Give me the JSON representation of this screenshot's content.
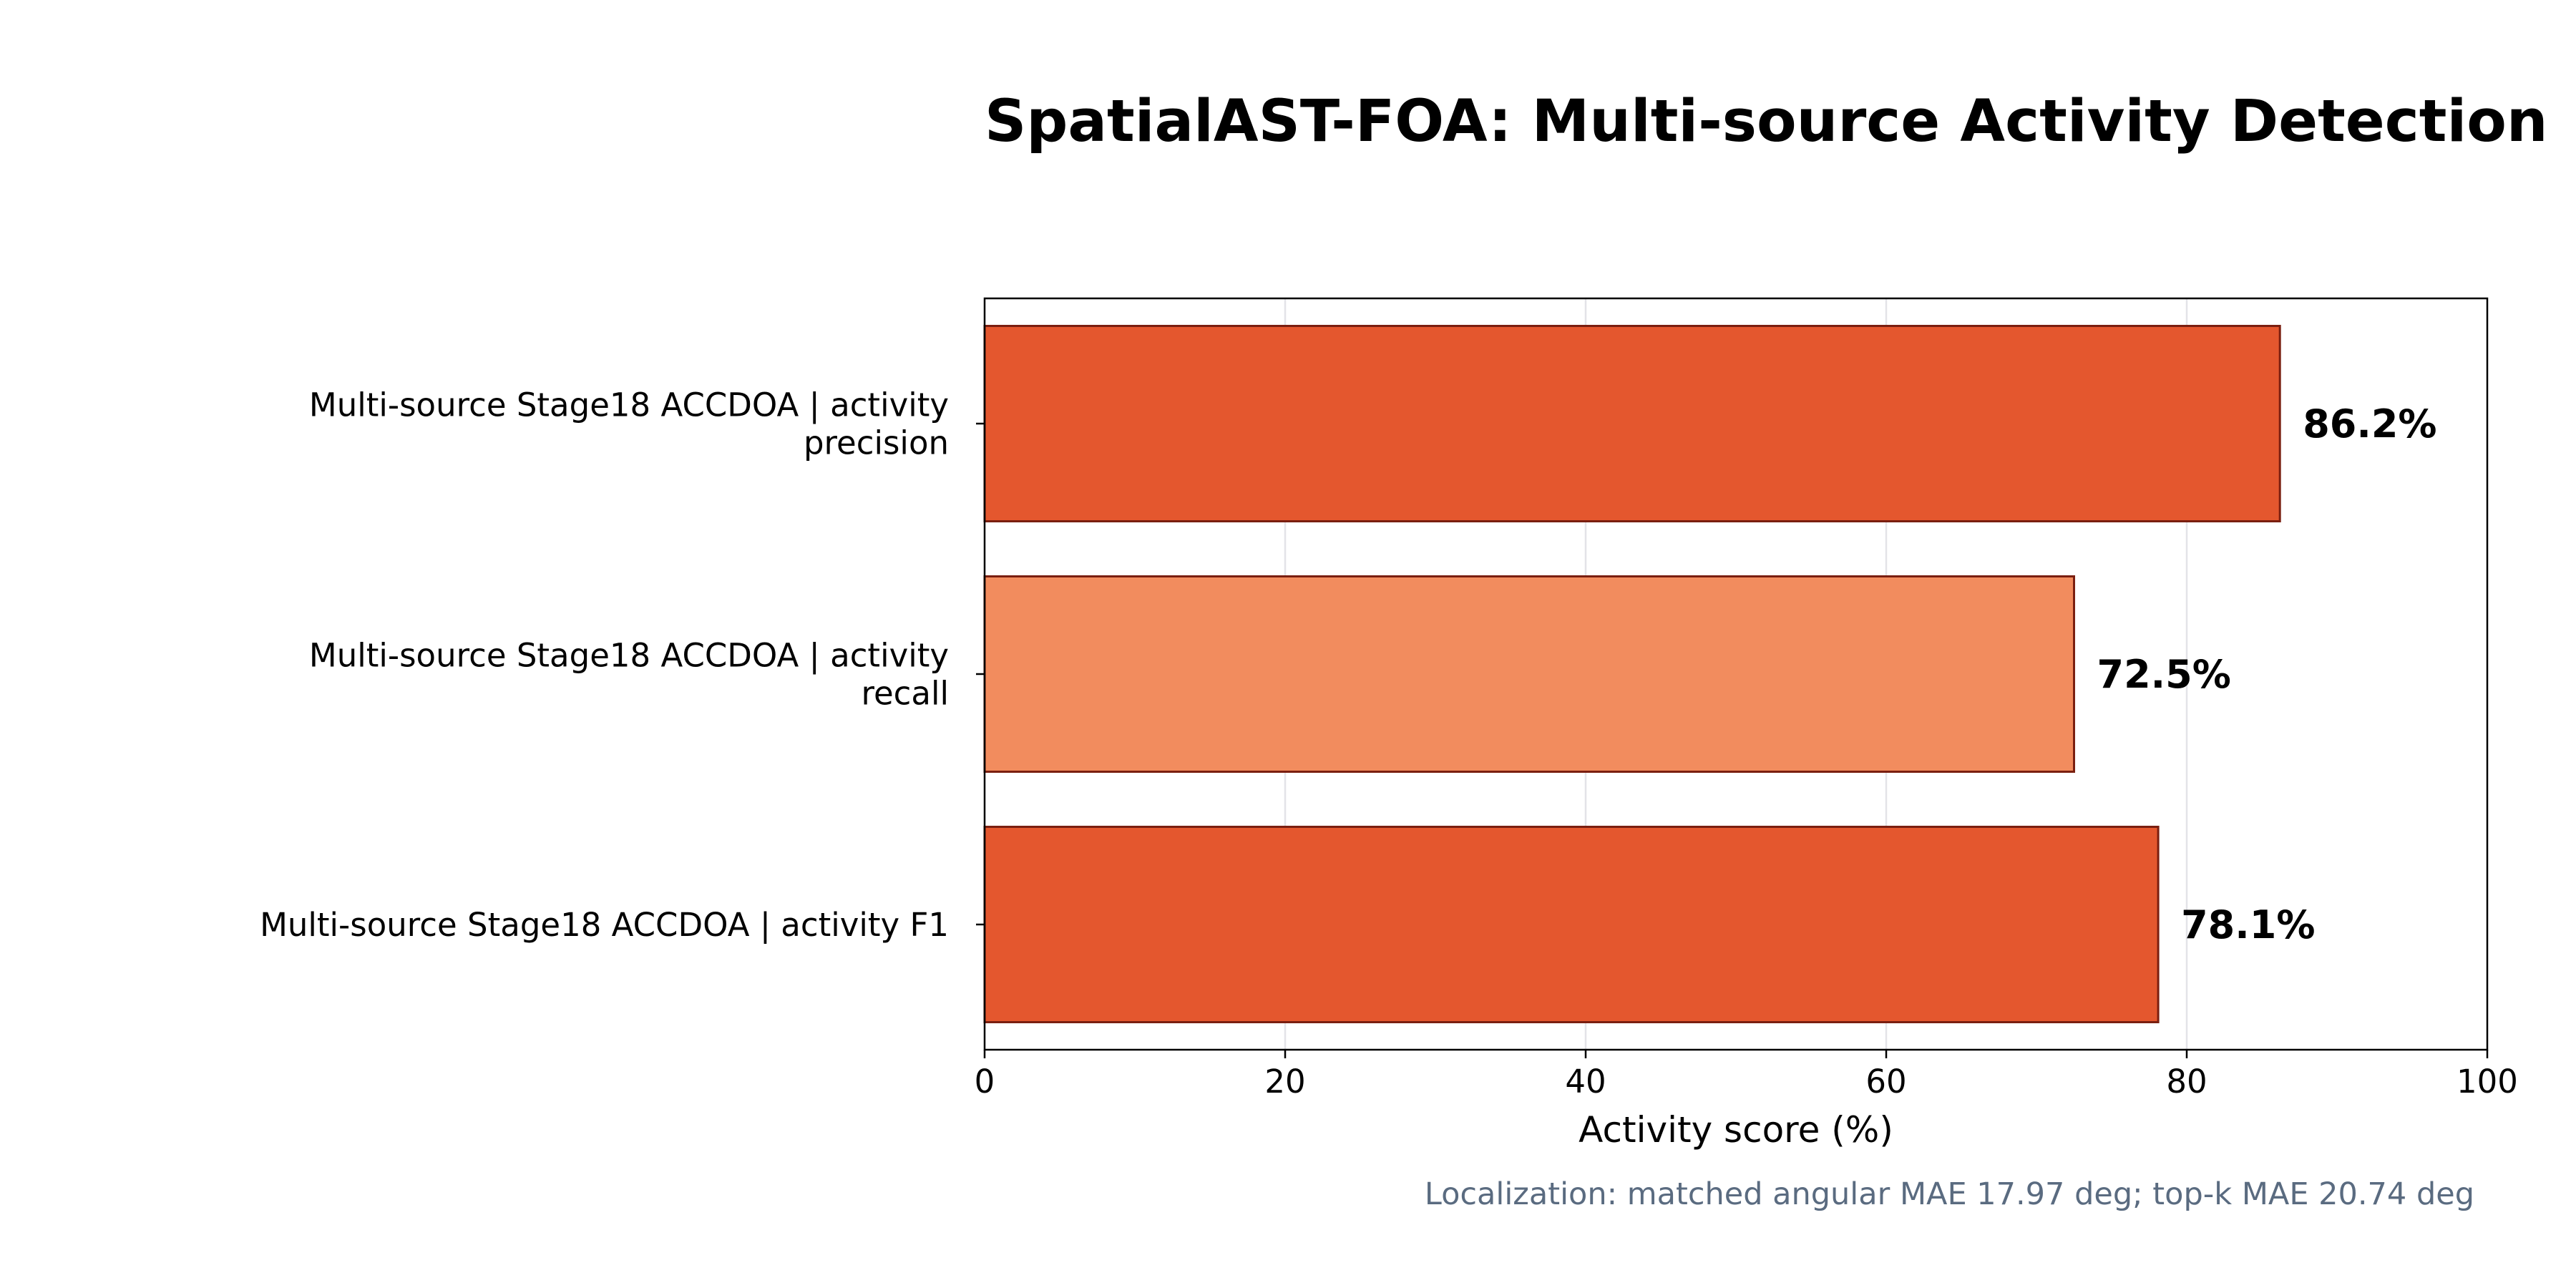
{
  "chart_data": {
    "type": "bar",
    "orientation": "horizontal",
    "title": "SpatialAST-FOA: Multi-source Activity Detection",
    "xlabel": "Activity score (%)",
    "ylabel": "",
    "xlim": [
      0,
      100
    ],
    "xticks": [
      "0",
      "20",
      "40",
      "60",
      "80",
      "100"
    ],
    "grid": "vertical",
    "categories": [
      [
        "Multi-source Stage18 ACCDOA | activity",
        "precision"
      ],
      [
        "Multi-source Stage18 ACCDOA | activity",
        "recall"
      ],
      [
        "Multi-source Stage18 ACCDOA | activity F1"
      ]
    ],
    "values": [
      86.2,
      72.5,
      78.1
    ],
    "value_labels": [
      "86.2%",
      "72.5%",
      "78.1%"
    ],
    "bar_colors": [
      "#e4572e",
      "#f28c5e",
      "#e4572e"
    ],
    "bar_edge_color": "#7a1f10",
    "footnote": "Localization: matched angular MAE 17.97 deg; top-k MAE 20.74 deg"
  }
}
